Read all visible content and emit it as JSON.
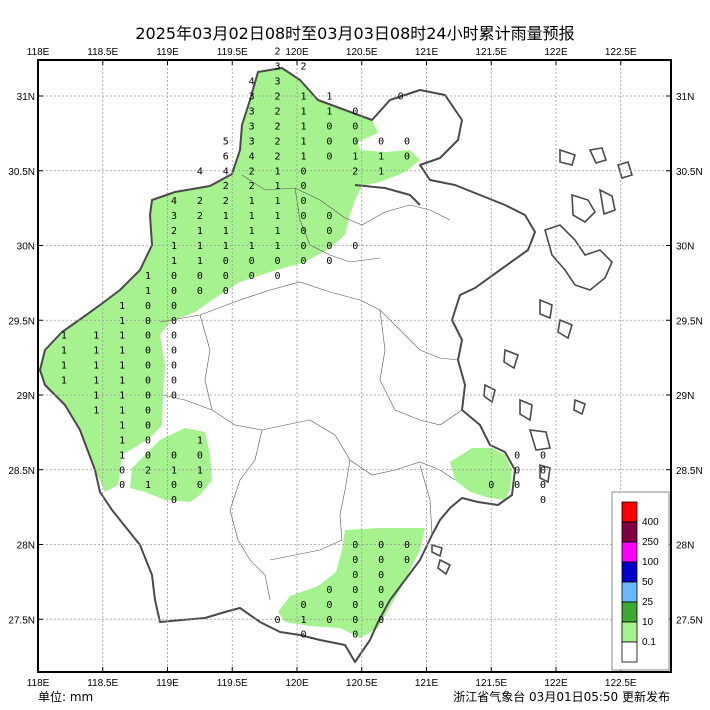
{
  "title": "2025年03月02日08时至03月03日08时24小时累计雨量预报",
  "unit_label": "单位: mm",
  "footer": "浙江省气象台 03月01日05:50 更新发布",
  "lon_ticks": [
    "118E",
    "118.5E",
    "119E",
    "119.5E",
    "120E",
    "120.5E",
    "121E",
    "121.5E",
    "122E",
    "122.5E"
  ],
  "lat_ticks": [
    "31N",
    "30.5N",
    "30N",
    "29.5N",
    "29N",
    "28.5N",
    "28N",
    "27.5N"
  ],
  "colors": {
    "rain_fill": "#a6f28f",
    "coast": "#4a4a4a",
    "grid": "#9a9a9a"
  },
  "legend": [
    {
      "label": "400",
      "color": "#ff0000"
    },
    {
      "label": "250",
      "color": "#800040"
    },
    {
      "label": "100",
      "color": "#ff00ff"
    },
    {
      "label": "50",
      "color": "#0000cc"
    },
    {
      "label": "25",
      "color": "#66b8ff"
    },
    {
      "label": "10",
      "color": "#3da832"
    },
    {
      "label": "0.1",
      "color": "#a6f28f"
    },
    {
      "label": "",
      "color": "#ffffff"
    }
  ],
  "values": [
    {
      "t": "2",
      "lon": 119.85,
      "lat": 31.3
    },
    {
      "t": "3",
      "lon": 119.85,
      "lat": 31.2
    },
    {
      "t": "2",
      "lon": 120.05,
      "lat": 31.2
    },
    {
      "t": "0",
      "lon": 120.8,
      "lat": 31.0
    },
    {
      "t": "4",
      "lon": 119.65,
      "lat": 31.1
    },
    {
      "t": "3",
      "lon": 119.85,
      "lat": 31.1
    },
    {
      "t": "3",
      "lon": 119.65,
      "lat": 31.0
    },
    {
      "t": "2",
      "lon": 119.85,
      "lat": 31.0
    },
    {
      "t": "1",
      "lon": 120.05,
      "lat": 31.0
    },
    {
      "t": "1",
      "lon": 120.25,
      "lat": 31.0
    },
    {
      "t": "3",
      "lon": 119.65,
      "lat": 30.9
    },
    {
      "t": "2",
      "lon": 119.85,
      "lat": 30.9
    },
    {
      "t": "1",
      "lon": 120.05,
      "lat": 30.9
    },
    {
      "t": "1",
      "lon": 120.25,
      "lat": 30.9
    },
    {
      "t": "0",
      "lon": 120.45,
      "lat": 30.9
    },
    {
      "t": "3",
      "lon": 119.65,
      "lat": 30.8
    },
    {
      "t": "2",
      "lon": 119.85,
      "lat": 30.8
    },
    {
      "t": "1",
      "lon": 120.05,
      "lat": 30.8
    },
    {
      "t": "0",
      "lon": 120.25,
      "lat": 30.8
    },
    {
      "t": "0",
      "lon": 120.45,
      "lat": 30.8
    },
    {
      "t": "5",
      "lon": 119.45,
      "lat": 30.7
    },
    {
      "t": "3",
      "lon": 119.65,
      "lat": 30.7
    },
    {
      "t": "2",
      "lon": 119.85,
      "lat": 30.7
    },
    {
      "t": "1",
      "lon": 120.05,
      "lat": 30.7
    },
    {
      "t": "0",
      "lon": 120.25,
      "lat": 30.7
    },
    {
      "t": "0",
      "lon": 120.45,
      "lat": 30.7
    },
    {
      "t": "0",
      "lon": 120.65,
      "lat": 30.7
    },
    {
      "t": "0",
      "lon": 120.85,
      "lat": 30.7
    },
    {
      "t": "6",
      "lon": 119.45,
      "lat": 30.6
    },
    {
      "t": "4",
      "lon": 119.65,
      "lat": 30.6
    },
    {
      "t": "2",
      "lon": 119.85,
      "lat": 30.6
    },
    {
      "t": "1",
      "lon": 120.05,
      "lat": 30.6
    },
    {
      "t": "0",
      "lon": 120.25,
      "lat": 30.6
    },
    {
      "t": "1",
      "lon": 120.45,
      "lat": 30.6
    },
    {
      "t": "1",
      "lon": 120.65,
      "lat": 30.6
    },
    {
      "t": "0",
      "lon": 120.85,
      "lat": 30.6
    },
    {
      "t": "4",
      "lon": 119.25,
      "lat": 30.5
    },
    {
      "t": "4",
      "lon": 119.45,
      "lat": 30.5
    },
    {
      "t": "2",
      "lon": 119.65,
      "lat": 30.5
    },
    {
      "t": "1",
      "lon": 119.85,
      "lat": 30.5
    },
    {
      "t": "0",
      "lon": 120.05,
      "lat": 30.5
    },
    {
      "t": "2",
      "lon": 120.45,
      "lat": 30.5
    },
    {
      "t": "1",
      "lon": 120.65,
      "lat": 30.5
    },
    {
      "t": "2",
      "lon": 119.45,
      "lat": 30.4
    },
    {
      "t": "2",
      "lon": 119.65,
      "lat": 30.4
    },
    {
      "t": "1",
      "lon": 119.85,
      "lat": 30.4
    },
    {
      "t": "0",
      "lon": 120.05,
      "lat": 30.4
    },
    {
      "t": "4",
      "lon": 119.05,
      "lat": 30.3
    },
    {
      "t": "2",
      "lon": 119.25,
      "lat": 30.3
    },
    {
      "t": "2",
      "lon": 119.45,
      "lat": 30.3
    },
    {
      "t": "1",
      "lon": 119.65,
      "lat": 30.3
    },
    {
      "t": "1",
      "lon": 119.85,
      "lat": 30.3
    },
    {
      "t": "0",
      "lon": 120.05,
      "lat": 30.3
    },
    {
      "t": "3",
      "lon": 119.05,
      "lat": 30.2
    },
    {
      "t": "2",
      "lon": 119.25,
      "lat": 30.2
    },
    {
      "t": "1",
      "lon": 119.45,
      "lat": 30.2
    },
    {
      "t": "1",
      "lon": 119.65,
      "lat": 30.2
    },
    {
      "t": "1",
      "lon": 119.85,
      "lat": 30.2
    },
    {
      "t": "0",
      "lon": 120.05,
      "lat": 30.2
    },
    {
      "t": "0",
      "lon": 120.25,
      "lat": 30.2
    },
    {
      "t": "2",
      "lon": 119.05,
      "lat": 30.1
    },
    {
      "t": "1",
      "lon": 119.25,
      "lat": 30.1
    },
    {
      "t": "1",
      "lon": 119.45,
      "lat": 30.1
    },
    {
      "t": "1",
      "lon": 119.65,
      "lat": 30.1
    },
    {
      "t": "1",
      "lon": 119.85,
      "lat": 30.1
    },
    {
      "t": "0",
      "lon": 120.05,
      "lat": 30.1
    },
    {
      "t": "0",
      "lon": 120.25,
      "lat": 30.1
    },
    {
      "t": "1",
      "lon": 119.05,
      "lat": 30.0
    },
    {
      "t": "1",
      "lon": 119.25,
      "lat": 30.0
    },
    {
      "t": "1",
      "lon": 119.45,
      "lat": 30.0
    },
    {
      "t": "1",
      "lon": 119.65,
      "lat": 30.0
    },
    {
      "t": "1",
      "lon": 119.85,
      "lat": 30.0
    },
    {
      "t": "0",
      "lon": 120.05,
      "lat": 30.0
    },
    {
      "t": "0",
      "lon": 120.25,
      "lat": 30.0
    },
    {
      "t": "0",
      "lon": 120.45,
      "lat": 30.0
    },
    {
      "t": "1",
      "lon": 119.05,
      "lat": 29.9
    },
    {
      "t": "1",
      "lon": 119.25,
      "lat": 29.9
    },
    {
      "t": "0",
      "lon": 119.45,
      "lat": 29.9
    },
    {
      "t": "0",
      "lon": 119.65,
      "lat": 29.9
    },
    {
      "t": "0",
      "lon": 119.85,
      "lat": 29.9
    },
    {
      "t": "0",
      "lon": 120.05,
      "lat": 29.9
    },
    {
      "t": "0",
      "lon": 120.25,
      "lat": 29.9
    },
    {
      "t": "1",
      "lon": 118.85,
      "lat": 29.8
    },
    {
      "t": "0",
      "lon": 119.05,
      "lat": 29.8
    },
    {
      "t": "0",
      "lon": 119.25,
      "lat": 29.8
    },
    {
      "t": "0",
      "lon": 119.45,
      "lat": 29.8
    },
    {
      "t": "0",
      "lon": 119.65,
      "lat": 29.8
    },
    {
      "t": "0",
      "lon": 119.85,
      "lat": 29.8
    },
    {
      "t": "1",
      "lon": 118.85,
      "lat": 29.7
    },
    {
      "t": "0",
      "lon": 119.05,
      "lat": 29.7
    },
    {
      "t": "0",
      "lon": 119.25,
      "lat": 29.7
    },
    {
      "t": "0",
      "lon": 119.45,
      "lat": 29.7
    },
    {
      "t": "1",
      "lon": 118.65,
      "lat": 29.6
    },
    {
      "t": "0",
      "lon": 118.85,
      "lat": 29.6
    },
    {
      "t": "0",
      "lon": 119.05,
      "lat": 29.6
    },
    {
      "t": "1",
      "lon": 118.65,
      "lat": 29.5
    },
    {
      "t": "0",
      "lon": 118.85,
      "lat": 29.5
    },
    {
      "t": "0",
      "lon": 119.05,
      "lat": 29.5
    },
    {
      "t": "1",
      "lon": 118.2,
      "lat": 29.4
    },
    {
      "t": "1",
      "lon": 118.45,
      "lat": 29.4
    },
    {
      "t": "1",
      "lon": 118.65,
      "lat": 29.4
    },
    {
      "t": "0",
      "lon": 118.85,
      "lat": 29.4
    },
    {
      "t": "0",
      "lon": 119.05,
      "lat": 29.4
    },
    {
      "t": "1",
      "lon": 118.2,
      "lat": 29.3
    },
    {
      "t": "1",
      "lon": 118.45,
      "lat": 29.3
    },
    {
      "t": "1",
      "lon": 118.65,
      "lat": 29.3
    },
    {
      "t": "0",
      "lon": 118.85,
      "lat": 29.3
    },
    {
      "t": "0",
      "lon": 119.05,
      "lat": 29.3
    },
    {
      "t": "1",
      "lon": 118.2,
      "lat": 29.2
    },
    {
      "t": "1",
      "lon": 118.45,
      "lat": 29.2
    },
    {
      "t": "1",
      "lon": 118.65,
      "lat": 29.2
    },
    {
      "t": "0",
      "lon": 118.85,
      "lat": 29.2
    },
    {
      "t": "0",
      "lon": 119.05,
      "lat": 29.2
    },
    {
      "t": "1",
      "lon": 118.2,
      "lat": 29.1
    },
    {
      "t": "1",
      "lon": 118.45,
      "lat": 29.1
    },
    {
      "t": "1",
      "lon": 118.65,
      "lat": 29.1
    },
    {
      "t": "0",
      "lon": 118.85,
      "lat": 29.1
    },
    {
      "t": "0",
      "lon": 119.05,
      "lat": 29.1
    },
    {
      "t": "1",
      "lon": 118.45,
      "lat": 29.0
    },
    {
      "t": "1",
      "lon": 118.65,
      "lat": 29.0
    },
    {
      "t": "0",
      "lon": 118.85,
      "lat": 29.0
    },
    {
      "t": "0",
      "lon": 119.05,
      "lat": 29.0
    },
    {
      "t": "1",
      "lon": 118.45,
      "lat": 28.9
    },
    {
      "t": "1",
      "lon": 118.65,
      "lat": 28.9
    },
    {
      "t": "0",
      "lon": 118.85,
      "lat": 28.9
    },
    {
      "t": "1",
      "lon": 118.65,
      "lat": 28.8
    },
    {
      "t": "0",
      "lon": 118.85,
      "lat": 28.8
    },
    {
      "t": "1",
      "lon": 118.65,
      "lat": 28.7
    },
    {
      "t": "0",
      "lon": 118.85,
      "lat": 28.7
    },
    {
      "t": "1",
      "lon": 119.25,
      "lat": 28.7
    },
    {
      "t": "1",
      "lon": 118.65,
      "lat": 28.6
    },
    {
      "t": "0",
      "lon": 118.85,
      "lat": 28.6
    },
    {
      "t": "0",
      "lon": 119.05,
      "lat": 28.6
    },
    {
      "t": "0",
      "lon": 119.25,
      "lat": 28.6
    },
    {
      "t": "0",
      "lon": 118.65,
      "lat": 28.5
    },
    {
      "t": "2",
      "lon": 118.85,
      "lat": 28.5
    },
    {
      "t": "1",
      "lon": 119.05,
      "lat": 28.5
    },
    {
      "t": "1",
      "lon": 119.25,
      "lat": 28.5
    },
    {
      "t": "0",
      "lon": 118.65,
      "lat": 28.4
    },
    {
      "t": "1",
      "lon": 118.85,
      "lat": 28.4
    },
    {
      "t": "0",
      "lon": 119.05,
      "lat": 28.4
    },
    {
      "t": "0",
      "lon": 119.25,
      "lat": 28.4
    },
    {
      "t": "0",
      "lon": 119.05,
      "lat": 28.3
    },
    {
      "t": "0",
      "lon": 121.7,
      "lat": 28.6
    },
    {
      "t": "0",
      "lon": 121.9,
      "lat": 28.6
    },
    {
      "t": "0",
      "lon": 121.7,
      "lat": 28.5
    },
    {
      "t": "0",
      "lon": 121.9,
      "lat": 28.5
    },
    {
      "t": "0",
      "lon": 121.5,
      "lat": 28.4
    },
    {
      "t": "0",
      "lon": 121.7,
      "lat": 28.4
    },
    {
      "t": "0",
      "lon": 121.9,
      "lat": 28.4
    },
    {
      "t": "0",
      "lon": 121.9,
      "lat": 28.3
    },
    {
      "t": "0",
      "lon": 120.45,
      "lat": 28.0
    },
    {
      "t": "0",
      "lon": 120.65,
      "lat": 28.0
    },
    {
      "t": "0",
      "lon": 120.85,
      "lat": 28.0
    },
    {
      "t": "0",
      "lon": 120.45,
      "lat": 27.9
    },
    {
      "t": "0",
      "lon": 120.65,
      "lat": 27.9
    },
    {
      "t": "0",
      "lon": 120.85,
      "lat": 27.9
    },
    {
      "t": "0",
      "lon": 120.45,
      "lat": 27.8
    },
    {
      "t": "0",
      "lon": 120.65,
      "lat": 27.8
    },
    {
      "t": "0",
      "lon": 120.25,
      "lat": 27.7
    },
    {
      "t": "0",
      "lon": 120.45,
      "lat": 27.7
    },
    {
      "t": "0",
      "lon": 120.65,
      "lat": 27.7
    },
    {
      "t": "0",
      "lon": 120.05,
      "lat": 27.6
    },
    {
      "t": "0",
      "lon": 120.25,
      "lat": 27.6
    },
    {
      "t": "0",
      "lon": 120.45,
      "lat": 27.6
    },
    {
      "t": "0",
      "lon": 120.65,
      "lat": 27.6
    },
    {
      "t": "0",
      "lon": 119.85,
      "lat": 27.5
    },
    {
      "t": "1",
      "lon": 120.05,
      "lat": 27.5
    },
    {
      "t": "0",
      "lon": 120.25,
      "lat": 27.5
    },
    {
      "t": "0",
      "lon": 120.45,
      "lat": 27.5
    },
    {
      "t": "0",
      "lon": 120.65,
      "lat": 27.5
    },
    {
      "t": "0",
      "lon": 120.05,
      "lat": 27.4
    },
    {
      "t": "0",
      "lon": 120.45,
      "lat": 27.4
    }
  ]
}
